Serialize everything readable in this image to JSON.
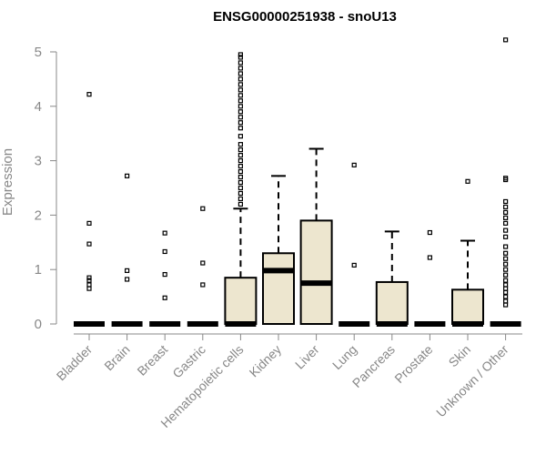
{
  "chart_data": {
    "type": "boxplot",
    "title": "ENSG00000251938 - snoU13",
    "xlabel": "",
    "ylabel": "Expression",
    "ylim": [
      0,
      5.2
    ],
    "yticks": [
      0,
      1,
      2,
      3,
      4,
      5
    ],
    "grid": false,
    "fill_color": "#ede6cf",
    "categories": [
      "Bladder",
      "Brain",
      "Breast",
      "Gastric",
      "Hematopoietic cells",
      "Kidney",
      "Liver",
      "Lung",
      "Pancreas",
      "Prostate",
      "Skin",
      "Unknown / Other"
    ],
    "boxes": [
      {
        "min": 0,
        "q1": 0,
        "median": 0,
        "q3": 0,
        "max": 0,
        "outliers": [
          0.65,
          0.72,
          0.8,
          0.85,
          1.47,
          1.85,
          4.22
        ]
      },
      {
        "min": 0,
        "q1": 0,
        "median": 0,
        "q3": 0,
        "max": 0,
        "outliers": [
          0.82,
          0.98,
          2.72
        ]
      },
      {
        "min": 0,
        "q1": 0,
        "median": 0,
        "q3": 0,
        "max": 0,
        "outliers": [
          0.48,
          0.91,
          1.33,
          1.67
        ]
      },
      {
        "min": 0,
        "q1": 0,
        "median": 0,
        "q3": 0,
        "max": 0,
        "outliers": [
          0.72,
          1.12,
          2.12
        ]
      },
      {
        "min": 0,
        "q1": 0,
        "median": 0,
        "q3": 0.85,
        "max": 2.12,
        "outliers": [
          2.2,
          2.3,
          2.4,
          2.5,
          2.6,
          2.7,
          2.8,
          2.9,
          3.0,
          3.1,
          3.2,
          3.3,
          3.45,
          3.6,
          3.7,
          3.8,
          3.9,
          4.0,
          4.1,
          4.2,
          4.3,
          4.4,
          4.5,
          4.6,
          4.7,
          4.8,
          4.9,
          4.95
        ]
      },
      {
        "min": 0,
        "q1": 0,
        "median": 0.98,
        "q3": 1.3,
        "max": 2.72,
        "outliers": []
      },
      {
        "min": 0,
        "q1": 0,
        "median": 0.75,
        "q3": 1.9,
        "max": 3.22,
        "outliers": []
      },
      {
        "min": 0,
        "q1": 0,
        "median": 0,
        "q3": 0,
        "max": 0,
        "outliers": [
          1.08,
          2.92
        ]
      },
      {
        "min": 0,
        "q1": 0,
        "median": 0,
        "q3": 0.77,
        "max": 1.7,
        "outliers": []
      },
      {
        "min": 0,
        "q1": 0,
        "median": 0,
        "q3": 0,
        "max": 0,
        "outliers": [
          1.22,
          1.68
        ]
      },
      {
        "min": 0,
        "q1": 0,
        "median": 0,
        "q3": 0.63,
        "max": 1.53,
        "outliers": [
          2.62
        ]
      },
      {
        "min": 0,
        "q1": 0,
        "median": 0,
        "q3": 0,
        "max": 0,
        "outliers": [
          0.35,
          0.42,
          0.5,
          0.58,
          0.65,
          0.72,
          0.8,
          0.9,
          1.0,
          1.1,
          1.2,
          1.3,
          1.42,
          1.6,
          1.72,
          1.85,
          1.95,
          2.05,
          2.15,
          2.25,
          2.65,
          2.68,
          5.22
        ]
      }
    ]
  }
}
